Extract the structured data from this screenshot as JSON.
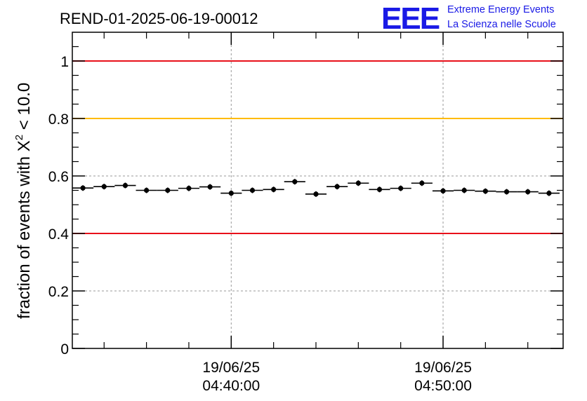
{
  "header": {
    "title": "REND-01-2025-06-19-00012",
    "logo_text": "EEE",
    "logo_line1": "Extreme Energy Events",
    "logo_line2": "La Scienza nelle Scuole"
  },
  "chart_data": {
    "type": "scatter",
    "title": "REND-01-2025-06-19-00012",
    "ylabel": "fraction of events with χ² < 10.0",
    "ylabel_parts": {
      "prefix": "fraction of events with X",
      "sup": "2",
      "suffix": " < 10.0"
    },
    "xlabel": "",
    "ylim": [
      0,
      1.1
    ],
    "y_ticks": [
      0,
      0.2,
      0.4,
      0.6,
      0.8,
      1.0
    ],
    "y_tick_labels": [
      "0",
      "0.2",
      "0.4",
      "0.6",
      "0.8",
      "1"
    ],
    "x_tick_labels": [
      {
        "date": "19/06/25",
        "time": "04:40:00"
      },
      {
        "date": "19/06/25",
        "time": "04:50:00"
      }
    ],
    "x_range": [
      "04:32:30",
      "04:55:40"
    ],
    "grid": true,
    "reference_lines": [
      {
        "value": 1.0,
        "color": "#e8101a"
      },
      {
        "value": 0.8,
        "color": "#ffbb00"
      },
      {
        "value": 0.4,
        "color": "#e8101a"
      }
    ],
    "series": [
      {
        "x": [
          "04:33:00",
          "04:34:00",
          "04:35:00",
          "04:36:00",
          "04:37:00",
          "04:38:00",
          "04:39:00",
          "04:40:00",
          "04:41:00",
          "04:42:00",
          "04:43:00",
          "04:44:00",
          "04:45:00",
          "04:46:00",
          "04:47:00",
          "04:48:00",
          "04:49:00",
          "04:50:00",
          "04:51:00",
          "04:52:00",
          "04:53:00",
          "04:54:00",
          "04:55:00"
        ],
        "values": [
          0.558,
          0.563,
          0.567,
          0.55,
          0.55,
          0.557,
          0.562,
          0.54,
          0.55,
          0.553,
          0.58,
          0.537,
          0.563,
          0.575,
          0.553,
          0.557,
          0.575,
          0.548,
          0.55,
          0.547,
          0.545,
          0.545,
          0.54
        ],
        "color": "#000000"
      }
    ]
  }
}
